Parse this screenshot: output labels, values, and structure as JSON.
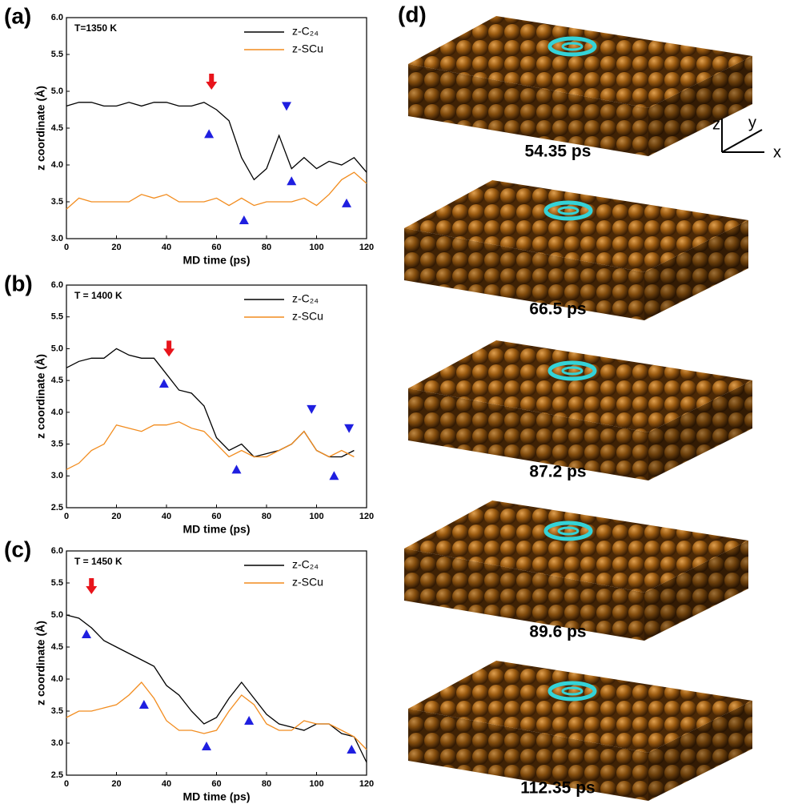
{
  "chart_data": [
    {
      "type": "line",
      "label": "(a)",
      "annotation": "T=1350 K",
      "xlabel": "MD time (ps)",
      "ylabel": "z coordinate (Å)",
      "x": [
        0,
        5,
        10,
        15,
        20,
        25,
        30,
        35,
        40,
        45,
        50,
        55,
        60,
        65,
        70,
        75,
        80,
        85,
        90,
        95,
        100,
        105,
        110,
        115,
        120
      ],
      "series": [
        {
          "name": "z-C₂₄",
          "color": "#000000",
          "values": [
            4.8,
            4.85,
            4.85,
            4.8,
            4.8,
            4.85,
            4.8,
            4.85,
            4.85,
            4.8,
            4.8,
            4.85,
            4.75,
            4.6,
            4.1,
            3.8,
            3.95,
            4.4,
            3.95,
            4.1,
            3.95,
            4.05,
            4.0,
            4.1,
            3.9
          ]
        },
        {
          "name": "z-SCu",
          "color": "#f28c1e",
          "values": [
            3.4,
            3.55,
            3.5,
            3.5,
            3.5,
            3.5,
            3.6,
            3.55,
            3.6,
            3.5,
            3.5,
            3.5,
            3.55,
            3.45,
            3.55,
            3.45,
            3.5,
            3.5,
            3.5,
            3.55,
            3.45,
            3.6,
            3.8,
            3.9,
            3.75
          ]
        }
      ],
      "markers": {
        "arrows": [
          {
            "x": 58,
            "y": 5.0
          }
        ],
        "up": [
          {
            "x": 57,
            "y": 4.42
          },
          {
            "x": 71,
            "y": 3.25
          },
          {
            "x": 90,
            "y": 3.78
          },
          {
            "x": 112,
            "y": 3.48
          }
        ],
        "down": [
          {
            "x": 88,
            "y": 4.8
          }
        ]
      },
      "xlim": [
        0,
        120
      ],
      "xticks": [
        0,
        20,
        40,
        60,
        80,
        100,
        120
      ],
      "ylim": [
        3,
        6
      ],
      "yticks": [
        {
          "value": 3,
          "label": "3.0"
        },
        {
          "value": 3.5,
          "label": "3.5"
        },
        {
          "value": 4,
          "label": "4.0"
        },
        {
          "value": 4.5,
          "label": "4.5"
        },
        {
          "value": 5,
          "label": "5.0"
        },
        {
          "value": 5.5,
          "label": "5.5"
        },
        {
          "value": 6,
          "label": "6.0"
        }
      ]
    },
    {
      "type": "line",
      "label": "(b)",
      "annotation": "T = 1400 K",
      "xlabel": "MD time (ps)",
      "ylabel": "z coordinate (Å)",
      "x": [
        0,
        5,
        10,
        15,
        20,
        25,
        30,
        35,
        40,
        45,
        50,
        55,
        60,
        65,
        70,
        75,
        80,
        85,
        90,
        95,
        100,
        105,
        110,
        115
      ],
      "series": [
        {
          "name": "z-C₂₄",
          "color": "#000000",
          "values": [
            4.7,
            4.8,
            4.85,
            4.85,
            5.0,
            4.9,
            4.85,
            4.85,
            4.6,
            4.35,
            4.3,
            4.1,
            3.6,
            3.4,
            3.5,
            3.3,
            3.35,
            3.4,
            3.5,
            3.7,
            3.4,
            3.3,
            3.3,
            3.4
          ]
        },
        {
          "name": "z-SCu",
          "color": "#f28c1e",
          "values": [
            3.1,
            3.2,
            3.4,
            3.5,
            3.8,
            3.75,
            3.7,
            3.8,
            3.8,
            3.85,
            3.75,
            3.7,
            3.5,
            3.3,
            3.4,
            3.3,
            3.3,
            3.4,
            3.5,
            3.7,
            3.4,
            3.3,
            3.4,
            3.3
          ]
        }
      ],
      "markers": {
        "arrows": [
          {
            "x": 41,
            "y": 4.85
          }
        ],
        "up": [
          {
            "x": 39,
            "y": 4.45
          },
          {
            "x": 68,
            "y": 3.1
          },
          {
            "x": 107,
            "y": 3.0
          }
        ],
        "down": [
          {
            "x": 98,
            "y": 4.05
          },
          {
            "x": 113,
            "y": 3.75
          }
        ]
      },
      "xlim": [
        0,
        120
      ],
      "xticks": [
        0,
        20,
        40,
        60,
        80,
        100,
        120
      ],
      "ylim": [
        2.5,
        6
      ],
      "yticks": [
        {
          "value": 2.5,
          "label": "2.5"
        },
        {
          "value": 3,
          "label": "3.0"
        },
        {
          "value": 3.5,
          "label": "3.5"
        },
        {
          "value": 4,
          "label": "4.0"
        },
        {
          "value": 4.5,
          "label": "4.5"
        },
        {
          "value": 5,
          "label": "5.0"
        },
        {
          "value": 5.5,
          "label": "5.5"
        },
        {
          "value": 6,
          "label": "6.0"
        }
      ]
    },
    {
      "type": "line",
      "label": "(c)",
      "annotation": "T = 1450 K",
      "xlabel": "MD time (ps)",
      "ylabel": "z coordinate (Å)",
      "x": [
        0,
        5,
        10,
        15,
        20,
        25,
        30,
        35,
        40,
        45,
        50,
        55,
        60,
        65,
        70,
        75,
        80,
        85,
        90,
        95,
        100,
        105,
        110,
        115,
        120
      ],
      "series": [
        {
          "name": "z-C₂₄",
          "color": "#000000",
          "values": [
            5.0,
            4.95,
            4.8,
            4.6,
            4.5,
            4.4,
            4.3,
            4.2,
            3.9,
            3.75,
            3.5,
            3.3,
            3.4,
            3.7,
            3.95,
            3.7,
            3.45,
            3.3,
            3.25,
            3.2,
            3.3,
            3.3,
            3.15,
            3.1,
            2.7
          ]
        },
        {
          "name": "z-SCu",
          "color": "#f28c1e",
          "values": [
            3.4,
            3.5,
            3.5,
            3.55,
            3.6,
            3.75,
            3.95,
            3.7,
            3.35,
            3.2,
            3.2,
            3.15,
            3.2,
            3.5,
            3.75,
            3.6,
            3.3,
            3.2,
            3.2,
            3.35,
            3.3,
            3.3,
            3.2,
            3.1,
            2.9
          ]
        }
      ],
      "markers": {
        "arrows": [
          {
            "x": 10,
            "y": 5.3
          }
        ],
        "up": [
          {
            "x": 8,
            "y": 4.7
          },
          {
            "x": 31,
            "y": 3.6
          },
          {
            "x": 56,
            "y": 2.95
          },
          {
            "x": 73,
            "y": 3.35
          },
          {
            "x": 114,
            "y": 2.9
          }
        ],
        "down": []
      },
      "xlim": [
        0,
        120
      ],
      "xticks": [
        0,
        20,
        40,
        60,
        80,
        100,
        120
      ],
      "ylim": [
        2.5,
        6
      ],
      "yticks": [
        {
          "value": 2.5,
          "label": "2.5"
        },
        {
          "value": 3,
          "label": "3.0"
        },
        {
          "value": 3.5,
          "label": "3.5"
        },
        {
          "value": 4,
          "label": "4.0"
        },
        {
          "value": 4.5,
          "label": "4.5"
        },
        {
          "value": 5,
          "label": "5.0"
        },
        {
          "value": 5.5,
          "label": "5.5"
        },
        {
          "value": 6,
          "label": "6.0"
        }
      ]
    }
  ],
  "panel_d": {
    "label": "(d)",
    "snapshots": [
      "54.35 ps",
      "66.5  ps",
      "87.2  ps",
      "89.6  ps",
      "112.35 ps"
    ],
    "axes": [
      "z",
      "y",
      "x"
    ]
  }
}
